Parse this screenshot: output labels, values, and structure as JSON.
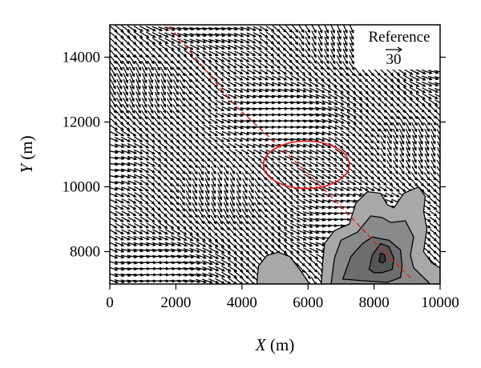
{
  "chart_data": {
    "type": "vector-field",
    "xlabel": {
      "var": "X",
      "unit": " (m)"
    },
    "ylabel": {
      "var": "Y",
      "unit": " (m)"
    },
    "xlim": [
      0,
      10000
    ],
    "ylim": [
      7000,
      15000
    ],
    "x_ticks": [
      0,
      2000,
      4000,
      6000,
      8000,
      10000
    ],
    "x_tick_labels": [
      "0",
      "2000",
      "4000",
      "6000",
      "8000",
      "10000"
    ],
    "y_ticks": [
      8000,
      10000,
      12000,
      14000
    ],
    "y_tick_labels": [
      "8000",
      "10000",
      "12000",
      "14000"
    ],
    "grid": false,
    "reference_vector": {
      "label": "Reference",
      "magnitude": "30",
      "value": 30
    },
    "vector_field": {
      "description": "dense black wind vectors, mostly pointing lower-right (southeast) with lighter magnitudes in the center",
      "x_range": [
        0,
        10000
      ],
      "y_range": [
        7000,
        15000
      ],
      "spacing": 190,
      "dominant_direction_deg": -35
    },
    "dashed_line": {
      "color": "#dd2222",
      "points": [
        [
          1800,
          14950
        ],
        [
          3800,
          12500
        ],
        [
          5500,
          10900
        ],
        [
          6900,
          9500
        ],
        [
          8200,
          8100
        ],
        [
          9200,
          7100
        ]
      ]
    },
    "ellipse": {
      "color": "#dd2222",
      "center": [
        5950,
        10680
      ],
      "radius_x": 1300,
      "radius_y": 730
    },
    "contours": [
      {
        "level": 1,
        "fill": "#a8a8a8",
        "regions": [
          [
            [
              4450,
              7000
            ],
            [
              4500,
              7550
            ],
            [
              4750,
              7880
            ],
            [
              5100,
              7980
            ],
            [
              5450,
              7850
            ],
            [
              5750,
              7450
            ],
            [
              6050,
              7000
            ]
          ],
          [
            [
              6400,
              7000
            ],
            [
              6450,
              7700
            ],
            [
              6500,
              8250
            ],
            [
              6800,
              8650
            ],
            [
              7250,
              8850
            ],
            [
              7450,
              9500
            ],
            [
              7800,
              9850
            ],
            [
              8200,
              9800
            ],
            [
              8400,
              9450
            ],
            [
              8600,
              9350
            ],
            [
              8900,
              9800
            ],
            [
              9350,
              10000
            ],
            [
              9550,
              9700
            ],
            [
              9500,
              9250
            ],
            [
              9600,
              8700
            ],
            [
              9500,
              8000
            ],
            [
              9750,
              7650
            ],
            [
              10000,
              7500
            ],
            [
              10000,
              7000
            ]
          ]
        ]
      },
      {
        "level": 2,
        "fill": "#8a8a8a",
        "regions": [
          [
            [
              6700,
              7000
            ],
            [
              6800,
              7800
            ],
            [
              7000,
              8350
            ],
            [
              7500,
              8600
            ],
            [
              7900,
              9100
            ],
            [
              8250,
              9050
            ],
            [
              8500,
              8900
            ],
            [
              8950,
              8950
            ],
            [
              9200,
              8450
            ],
            [
              9100,
              7900
            ],
            [
              9200,
              7500
            ],
            [
              9500,
              7200
            ],
            [
              9700,
              7000
            ]
          ]
        ]
      },
      {
        "level": 3,
        "fill": "#6e6e6e",
        "regions": [
          [
            [
              7050,
              7150
            ],
            [
              7300,
              7850
            ],
            [
              7650,
              8250
            ],
            [
              7950,
              8450
            ],
            [
              8450,
              8350
            ],
            [
              8800,
              8050
            ],
            [
              8850,
              7550
            ],
            [
              8800,
              7200
            ],
            [
              8400,
              7050
            ],
            [
              7650,
              7100
            ]
          ]
        ]
      },
      {
        "level": 4,
        "fill": "#555555",
        "regions": [
          [
            [
              7850,
              7450
            ],
            [
              7950,
              7900
            ],
            [
              8200,
              8250
            ],
            [
              8450,
              8150
            ],
            [
              8600,
              7800
            ],
            [
              8550,
              7450
            ],
            [
              8250,
              7350
            ],
            [
              8000,
              7350
            ]
          ]
        ]
      },
      {
        "level": 5,
        "fill": "#3a3a3a",
        "regions": [
          [
            [
              8150,
              7700
            ],
            [
              8200,
              7950
            ],
            [
              8320,
              7900
            ],
            [
              8350,
              7720
            ],
            [
              8260,
              7650
            ]
          ]
        ]
      }
    ]
  }
}
